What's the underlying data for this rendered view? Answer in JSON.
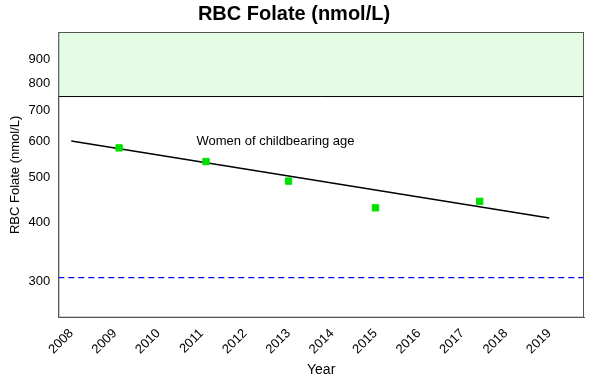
{
  "chart_data": {
    "type": "scatter",
    "title": "RBC Folate (nmol/L)",
    "x_label": "Year",
    "y_label": "RBC Folate (nmol/L)",
    "log": "y",
    "grid": false,
    "xlim": [
      2007.7,
      2019.8
    ],
    "xticks": [
      2008,
      2009,
      2010,
      2011,
      2012,
      2013,
      2014,
      2015,
      2016,
      2017,
      2018,
      2019
    ],
    "ylim": [
      250,
      1030
    ],
    "yticks": [
      300,
      400,
      500,
      600,
      700,
      800,
      900
    ],
    "series": [
      {
        "type": "scatter",
        "color": "#00e000",
        "marker": "square",
        "x": [
          2009.1,
          2011.1,
          2013.0,
          2015.0,
          2017.4
        ],
        "values": [
          580,
          542,
          492,
          431,
          445
        ]
      },
      {
        "type": "line",
        "color": "#000000",
        "line_style": "solid",
        "x": [
          2008.0,
          2019.0
        ],
        "values": [
          600,
          410
        ]
      }
    ],
    "bands": [
      {
        "from": 748,
        "to": 1030,
        "color": "#e4fce4"
      }
    ],
    "hlines": [
      {
        "y": 305,
        "color": "#0000ff",
        "line_style": "dashed"
      }
    ],
    "annotations": [
      {
        "text": "Women of childbearing age",
        "x": 2012.7,
        "y": 598
      }
    ]
  }
}
